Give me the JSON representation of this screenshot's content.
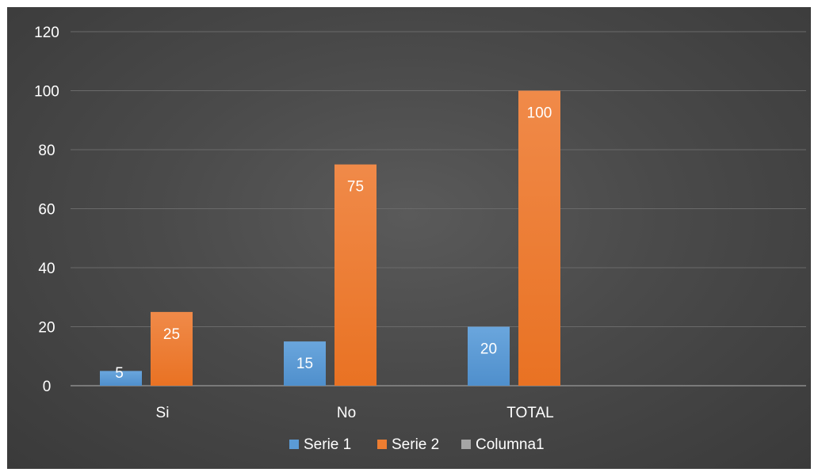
{
  "chart_data": {
    "type": "bar",
    "title": "",
    "xlabel": "",
    "ylabel": "",
    "categories": [
      "Si",
      "No",
      "TOTAL",
      ""
    ],
    "ylim": [
      0,
      120
    ],
    "yticks": [
      0,
      20,
      40,
      60,
      80,
      100,
      120
    ],
    "grid": true,
    "legend_position": "bottom",
    "series": [
      {
        "name": "Serie 1",
        "values": [
          5,
          15,
          20,
          null
        ],
        "labels": [
          "5",
          "15",
          "20",
          ""
        ],
        "color": "#5b9bd5"
      },
      {
        "name": "Serie 2",
        "values": [
          25,
          75,
          100,
          null
        ],
        "labels": [
          "25",
          "75",
          "100",
          ""
        ],
        "color": "#ed7d31"
      },
      {
        "name": "Columna1",
        "values": [
          null,
          null,
          null,
          null
        ],
        "labels": [
          "",
          "",
          "",
          ""
        ],
        "color": "#a5a5a5"
      }
    ]
  },
  "colors": {
    "background": "#4a4a4a",
    "gridline": "#6a6a6a",
    "axis_line": "#8c8c8c",
    "text": "#ffffff"
  }
}
